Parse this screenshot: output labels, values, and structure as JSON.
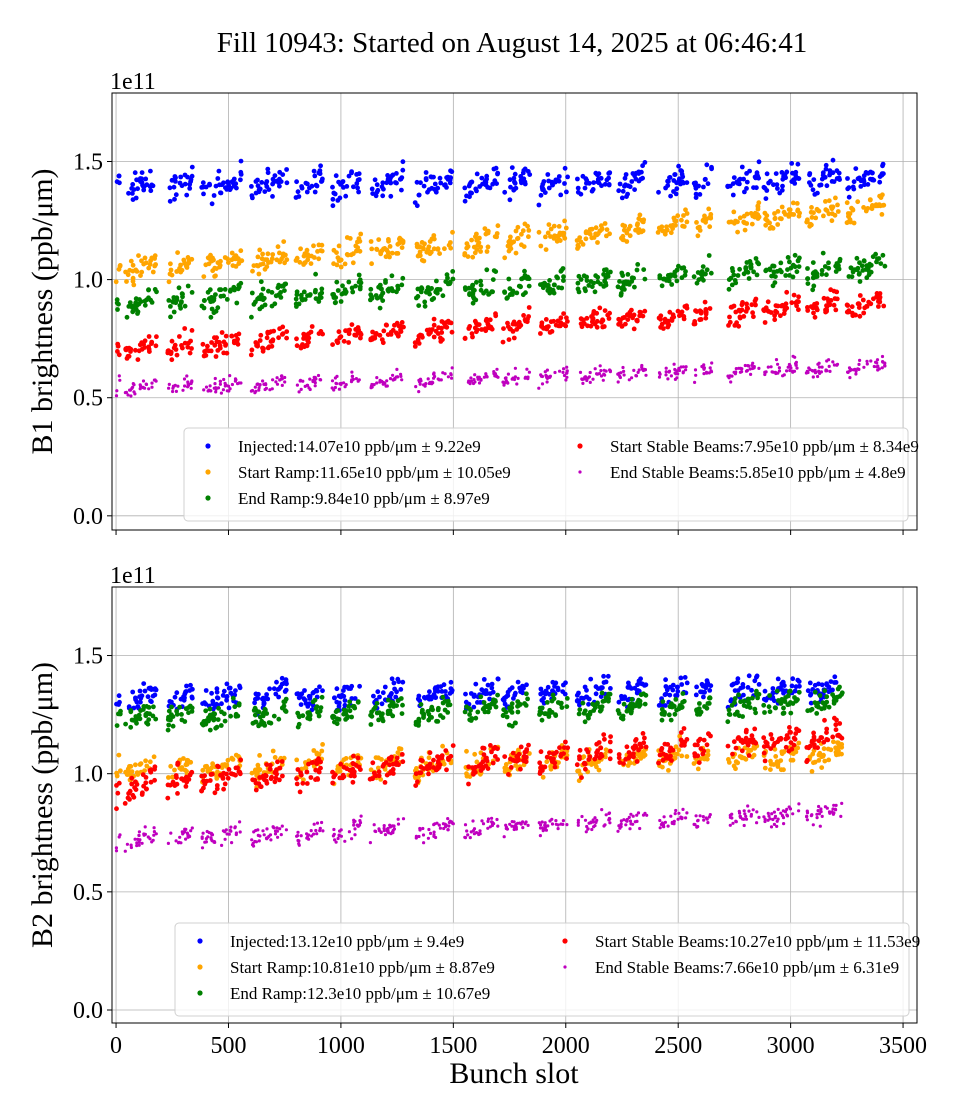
{
  "chart_data": [
    {
      "type": "scatter",
      "title": "Fill 10943: Started on August 14, 2025 at 06:46:41",
      "xlabel": "Bunch slot",
      "ylabel": "B1 brightness (ppb/μm)",
      "y_multiplier": "1e11",
      "xlim": [
        -18,
        3562
      ],
      "ylim": [
        -0.06,
        1.79
      ],
      "xticks": [
        0,
        500,
        1000,
        1500,
        2000,
        2500,
        3000,
        3500
      ],
      "yticks": [
        0.0,
        0.5,
        1.0,
        1.5
      ],
      "ytick_labels": [
        "0.0",
        "0.5",
        "1.0",
        "1.5"
      ],
      "grid": true,
      "legend_placement": "lower-right",
      "trains": [
        [
          0,
          20
        ],
        [
          40,
          180
        ],
        [
          230,
          340
        ],
        [
          380,
          560
        ],
        [
          600,
          760
        ],
        [
          800,
          920
        ],
        [
          960,
          1090
        ],
        [
          1130,
          1280
        ],
        [
          1330,
          1500
        ],
        [
          1550,
          1700
        ],
        [
          1720,
          1840
        ],
        [
          1880,
          2010
        ],
        [
          2050,
          2200
        ],
        [
          2230,
          2360
        ],
        [
          2410,
          2540
        ],
        [
          2570,
          2650
        ],
        [
          2720,
          2860
        ],
        [
          2880,
          3040
        ],
        [
          3070,
          3220
        ],
        [
          3250,
          3420
        ]
      ],
      "series": [
        {
          "name": "Injected:14.07e10 ppb/μm ± 9.22e9",
          "color": "#0000ff",
          "trend": [
            1.4,
            1.42
          ],
          "spread": 0.09
        },
        {
          "name": "Start Ramp:11.65e10 ppb/μm ± 10.05e9",
          "color": "#ffa500",
          "trend": [
            1.03,
            1.3
          ],
          "spread": 0.08
        },
        {
          "name": "End Ramp:9.84e10 ppb/μm ± 8.97e9",
          "color": "#008000",
          "trend": [
            0.9,
            1.05
          ],
          "spread": 0.08
        },
        {
          "name": "Start Stable Beams:7.95e10 ppb/μm ± 8.34e9",
          "color": "#ff0000",
          "trend": [
            0.7,
            0.9
          ],
          "spread": 0.07
        },
        {
          "name": "End Stable Beams:5.85e10 ppb/μm ± 4.8e9",
          "color": "#bf00bf",
          "trend": [
            0.54,
            0.63
          ],
          "spread": 0.05
        }
      ]
    },
    {
      "type": "scatter",
      "xlabel": "Bunch slot",
      "ylabel": "B2 brightness (ppb/μm)",
      "y_multiplier": "1e11",
      "xlim": [
        -18,
        3562
      ],
      "ylim": [
        -0.055,
        1.79
      ],
      "xticks": [
        0,
        500,
        1000,
        1500,
        2000,
        2500,
        3000,
        3500
      ],
      "xtick_labels": [
        "0",
        "500",
        "1000",
        "1500",
        "2000",
        "2500",
        "3000",
        "3500"
      ],
      "yticks": [
        0.0,
        0.5,
        1.0,
        1.5
      ],
      "ytick_labels": [
        "0.0",
        "0.5",
        "1.0",
        "1.5"
      ],
      "grid": true,
      "legend_placement": "lower-right",
      "trains": [
        [
          0,
          20
        ],
        [
          40,
          180
        ],
        [
          230,
          340
        ],
        [
          380,
          560
        ],
        [
          600,
          760
        ],
        [
          800,
          920
        ],
        [
          960,
          1090
        ],
        [
          1130,
          1280
        ],
        [
          1330,
          1500
        ],
        [
          1550,
          1700
        ],
        [
          1720,
          1840
        ],
        [
          1880,
          2010
        ],
        [
          2050,
          2200
        ],
        [
          2230,
          2360
        ],
        [
          2410,
          2540
        ],
        [
          2570,
          2650
        ],
        [
          2720,
          2860
        ],
        [
          2880,
          3040
        ],
        [
          3070,
          3230
        ]
      ],
      "series": [
        {
          "name": "Injected:13.12e10 ppb/μm ± 9.4e9",
          "color": "#0000ff",
          "trend": [
            1.32,
            1.36
          ],
          "spread": 0.08
        },
        {
          "name": "Start Ramp:10.81e10 ppb/μm ± 8.87e9",
          "color": "#ffa500",
          "trend": [
            1.02,
            1.08
          ],
          "spread": 0.08
        },
        {
          "name": "End Ramp:12.3e10 ppb/μm ± 10.67e9",
          "color": "#008000",
          "trend": [
            1.24,
            1.3
          ],
          "spread": 0.08
        },
        {
          "name": "Start Stable Beams:10.27e10 ppb/μm ± 11.53e9",
          "color": "#ff0000",
          "trend": [
            0.95,
            1.15
          ],
          "spread": 0.09
        },
        {
          "name": "End Stable Beams:7.66e10 ppb/μm ± 6.31e9",
          "color": "#bf00bf",
          "trend": [
            0.72,
            0.83
          ],
          "spread": 0.06
        }
      ]
    }
  ]
}
